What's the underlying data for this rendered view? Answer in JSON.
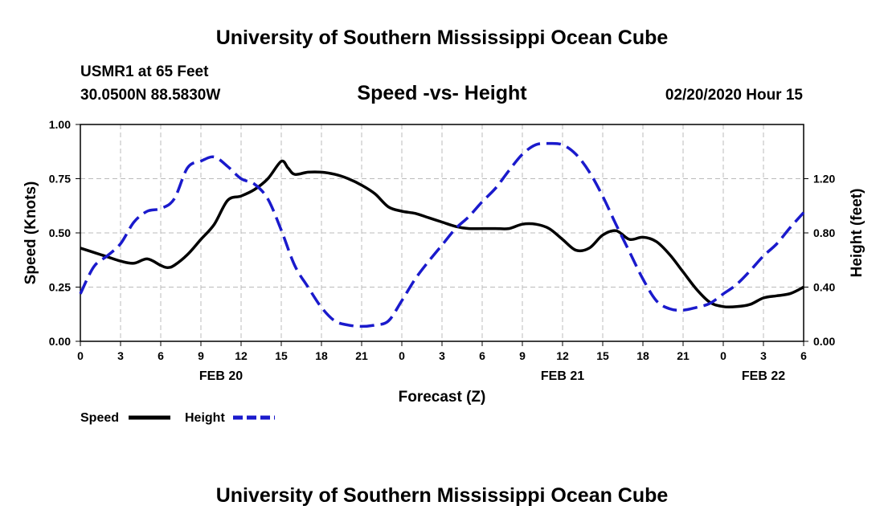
{
  "header": {
    "title": "University of Southern Mississippi Ocean Cube",
    "station": "USMR1 at 65 Feet",
    "location": "30.0500N 88.5830W",
    "forecast_time": "02/20/2020 Hour 15"
  },
  "footer": {
    "title": "University of Southern Mississippi Ocean Cube"
  },
  "colors": {
    "speed": "#000000",
    "height": "#1a1acc",
    "grid": "#bbbbbb"
  },
  "chart_data": {
    "type": "line",
    "title": "Speed -vs- Height",
    "xlabel": "Forecast (Z)",
    "ylabel": "Speed (Knots)",
    "y2label": "Height (feet)",
    "x_hours_range": [
      0,
      54
    ],
    "ylim": [
      0,
      1
    ],
    "y2lim": [
      0,
      1.6
    ],
    "x_ticks": [
      {
        "h": 0,
        "label": "0"
      },
      {
        "h": 3,
        "label": "3"
      },
      {
        "h": 6,
        "label": "6"
      },
      {
        "h": 9,
        "label": "9"
      },
      {
        "h": 12,
        "label": "12"
      },
      {
        "h": 15,
        "label": "15"
      },
      {
        "h": 18,
        "label": "18"
      },
      {
        "h": 21,
        "label": "21"
      },
      {
        "h": 24,
        "label": "0"
      },
      {
        "h": 27,
        "label": "3"
      },
      {
        "h": 30,
        "label": "6"
      },
      {
        "h": 33,
        "label": "9"
      },
      {
        "h": 36,
        "label": "12"
      },
      {
        "h": 39,
        "label": "15"
      },
      {
        "h": 42,
        "label": "18"
      },
      {
        "h": 45,
        "label": "21"
      },
      {
        "h": 48,
        "label": "0"
      },
      {
        "h": 51,
        "label": "3"
      },
      {
        "h": 54,
        "label": "6"
      }
    ],
    "date_labels": [
      {
        "h": 10.5,
        "label": "FEB 20"
      },
      {
        "h": 36,
        "label": "FEB 21"
      },
      {
        "h": 51,
        "label": "FEB 22"
      }
    ],
    "y_ticks": [
      {
        "v": 0,
        "label": "0.00"
      },
      {
        "v": 0.25,
        "label": "0.25"
      },
      {
        "v": 0.5,
        "label": "0.50"
      },
      {
        "v": 0.75,
        "label": "0.75"
      },
      {
        "v": 1.0,
        "label": "1.00"
      }
    ],
    "y2_ticks": [
      {
        "v": 0,
        "label": "0.00"
      },
      {
        "v": 0.4,
        "label": "0.40"
      },
      {
        "v": 0.8,
        "label": "0.80"
      },
      {
        "v": 1.2,
        "label": "1.20"
      }
    ],
    "series": [
      {
        "name": "Speed",
        "axis": "left",
        "style": "solid",
        "x": [
          0,
          1,
          2,
          3,
          4,
          5,
          6,
          6.5,
          7,
          8,
          9,
          10,
          11,
          12,
          13,
          14,
          15,
          15.5,
          16,
          17,
          18,
          19,
          20,
          21,
          22,
          23,
          24,
          25,
          26,
          27,
          28,
          29,
          30,
          31,
          32,
          33,
          34,
          35,
          36,
          37,
          38,
          39,
          40,
          41,
          42,
          43,
          44,
          45,
          46,
          47,
          48,
          49,
          50,
          51,
          52,
          53,
          54
        ],
        "values": [
          0.43,
          0.41,
          0.39,
          0.37,
          0.36,
          0.38,
          0.35,
          0.34,
          0.35,
          0.4,
          0.47,
          0.54,
          0.65,
          0.67,
          0.7,
          0.75,
          0.83,
          0.8,
          0.77,
          0.78,
          0.78,
          0.77,
          0.75,
          0.72,
          0.68,
          0.62,
          0.6,
          0.59,
          0.57,
          0.55,
          0.53,
          0.52,
          0.52,
          0.52,
          0.52,
          0.54,
          0.54,
          0.52,
          0.47,
          0.42,
          0.43,
          0.49,
          0.51,
          0.47,
          0.48,
          0.46,
          0.4,
          0.32,
          0.24,
          0.18,
          0.16,
          0.16,
          0.17,
          0.2,
          0.21,
          0.22,
          0.25
        ]
      },
      {
        "name": "Height",
        "axis": "right",
        "style": "dashed",
        "x": [
          0,
          1,
          2,
          3,
          4,
          5,
          6,
          7,
          8,
          9,
          10,
          11,
          12,
          13,
          14,
          15,
          16,
          17,
          18,
          19,
          20,
          21,
          22,
          23,
          24,
          25,
          26,
          27,
          28,
          29,
          30,
          31,
          32,
          33,
          34,
          35,
          36,
          37,
          38,
          39,
          40,
          41,
          42,
          43,
          44,
          45,
          46,
          47,
          48,
          49,
          50,
          51,
          52,
          53,
          54
        ],
        "values": [
          0.35,
          0.55,
          0.63,
          0.72,
          0.88,
          0.96,
          0.98,
          1.05,
          1.28,
          1.33,
          1.36,
          1.29,
          1.2,
          1.16,
          1.05,
          0.82,
          0.56,
          0.4,
          0.25,
          0.15,
          0.12,
          0.11,
          0.12,
          0.15,
          0.3,
          0.46,
          0.59,
          0.71,
          0.83,
          0.92,
          1.03,
          1.13,
          1.26,
          1.38,
          1.45,
          1.46,
          1.45,
          1.38,
          1.25,
          1.07,
          0.86,
          0.66,
          0.46,
          0.3,
          0.24,
          0.23,
          0.25,
          0.28,
          0.35,
          0.42,
          0.52,
          0.63,
          0.72,
          0.84,
          0.95
        ]
      }
    ],
    "legend": [
      {
        "label": "Speed",
        "style": "solid"
      },
      {
        "label": "Height",
        "style": "dashed"
      }
    ],
    "legend_position": "bottom-left"
  }
}
